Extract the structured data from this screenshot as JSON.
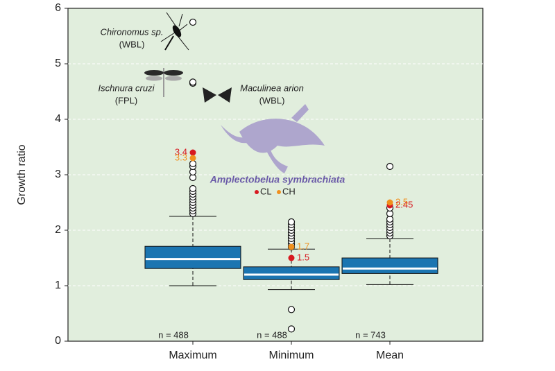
{
  "chart_data": {
    "type": "box",
    "y_label": "Growth ratio",
    "categories": [
      "Maximum",
      "Minimum",
      "Mean"
    ],
    "ylim": [
      0,
      6
    ],
    "yticks": [
      0,
      1,
      2,
      3,
      4,
      5,
      6
    ],
    "grid": true,
    "box_color": "#1b75b1",
    "boxes": [
      {
        "whisker_low": 1.0,
        "q1": 1.31,
        "median": 1.48,
        "q3": 1.71,
        "whisker_high": 2.25,
        "outliers": [
          2.3,
          2.35,
          2.4,
          2.45,
          2.5,
          2.55,
          2.6,
          2.65,
          2.7,
          2.75,
          2.95,
          3.05,
          3.15,
          3.2,
          4.65,
          4.67,
          5.75
        ]
      },
      {
        "whisker_low": 0.93,
        "q1": 1.11,
        "median": 1.2,
        "q3": 1.34,
        "whisker_high": 1.66,
        "outliers": [
          1.7,
          1.75,
          1.8,
          1.85,
          1.9,
          1.95,
          2.0,
          2.05,
          2.1,
          2.15,
          0.57,
          0.22
        ]
      },
      {
        "whisker_low": 1.02,
        "q1": 1.22,
        "median": 1.31,
        "q3": 1.5,
        "whisker_high": 1.85,
        "outliers": [
          1.9,
          1.95,
          2.0,
          2.05,
          2.1,
          2.15,
          2.2,
          2.3,
          2.4,
          3.15
        ]
      }
    ],
    "highlights": [
      {
        "name": "CL",
        "color": "#d71920",
        "values": [
          3.4,
          1.5,
          2.45
        ]
      },
      {
        "name": "CH",
        "color": "#f0901e",
        "values": [
          3.3,
          1.7,
          2.5
        ]
      }
    ],
    "sample_sizes": [
      "n = 488",
      "n = 488",
      "n = 743"
    ],
    "annotations": {
      "chironomus": "Chironomus sp.",
      "chironomus_group": "(WBL)",
      "ischnura": "Ischnura cruzi",
      "ischnura_group": "(FPL)",
      "maculinea": "Maculinea arion",
      "maculinea_group": "(WBL)",
      "amplectobelua": "Amplectobelua symbrachiata"
    }
  }
}
